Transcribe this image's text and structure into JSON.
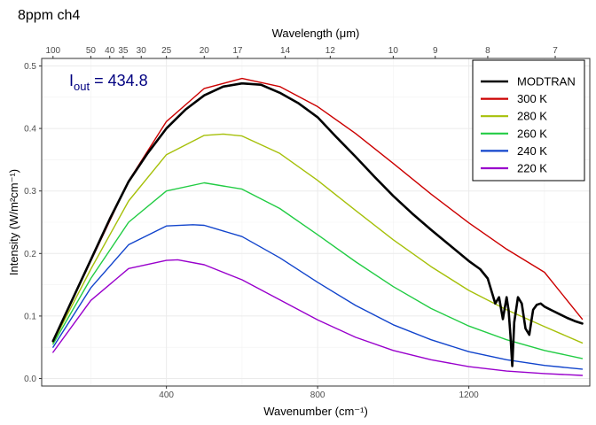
{
  "chart_data": {
    "type": "line",
    "title": "8ppm ch4",
    "xlabel": "Wavenumber (cm⁻¹)",
    "ylabel": "Intensity (W/m²cm⁻¹)",
    "top_axis_label": "Wavelength (μm)",
    "xlim": [
      70,
      1520
    ],
    "ylim": [
      -0.012,
      0.512
    ],
    "x_ticks": [
      400,
      800,
      1200
    ],
    "y_ticks": [
      0.0,
      0.1,
      0.2,
      0.3,
      0.4,
      0.5
    ],
    "y_tick_labels": [
      "0.0",
      "0.1",
      "0.2",
      "0.3",
      "0.4",
      "0.5"
    ],
    "top_ticks_um": [
      100,
      50,
      40,
      35,
      30,
      25,
      20,
      17,
      14,
      12,
      10,
      9,
      8,
      7
    ],
    "grid": true,
    "legend_position": "top-right",
    "annotation": {
      "base": "I",
      "subscript": "out",
      "text": " = 434.8",
      "color": "#000080"
    },
    "series": [
      {
        "name": "MODTRAN",
        "color": "#000000",
        "x": [
          100,
          150,
          200,
          250,
          300,
          350,
          400,
          450,
          500,
          550,
          600,
          650,
          700,
          750,
          800,
          850,
          900,
          950,
          1000,
          1050,
          1100,
          1150,
          1200,
          1230,
          1250,
          1270,
          1280,
          1290,
          1300,
          1305,
          1310,
          1315,
          1320,
          1330,
          1340,
          1350,
          1360,
          1365,
          1370,
          1380,
          1390,
          1400,
          1420,
          1440,
          1460,
          1480,
          1500
        ],
        "y": [
          0.06,
          0.125,
          0.19,
          0.255,
          0.315,
          0.36,
          0.4,
          0.43,
          0.453,
          0.467,
          0.472,
          0.47,
          0.457,
          0.44,
          0.418,
          0.386,
          0.355,
          0.323,
          0.292,
          0.264,
          0.238,
          0.213,
          0.188,
          0.175,
          0.16,
          0.12,
          0.13,
          0.095,
          0.13,
          0.11,
          0.07,
          0.02,
          0.09,
          0.13,
          0.12,
          0.08,
          0.07,
          0.09,
          0.11,
          0.118,
          0.12,
          0.115,
          0.109,
          0.103,
          0.097,
          0.092,
          0.088
        ]
      },
      {
        "name": "300 K",
        "color": "#CC0000",
        "x": [
          100,
          200,
          300,
          400,
          500,
          600,
          700,
          800,
          900,
          1000,
          1100,
          1200,
          1300,
          1400,
          1500
        ],
        "y": [
          0.06,
          0.188,
          0.316,
          0.411,
          0.464,
          0.48,
          0.467,
          0.435,
          0.392,
          0.344,
          0.295,
          0.249,
          0.207,
          0.17,
          0.095
        ]
      },
      {
        "name": "280 K",
        "color": "#A6C00A",
        "x": [
          100,
          200,
          300,
          400,
          500,
          550,
          600,
          700,
          800,
          900,
          1000,
          1100,
          1200,
          1300,
          1400,
          1500
        ],
        "y": [
          0.058,
          0.175,
          0.284,
          0.358,
          0.389,
          0.391,
          0.388,
          0.36,
          0.317,
          0.269,
          0.222,
          0.179,
          0.141,
          0.11,
          0.083,
          0.057
        ]
      },
      {
        "name": "260 K",
        "color": "#22CC44",
        "x": [
          100,
          200,
          300,
          400,
          500,
          600,
          700,
          800,
          900,
          1000,
          1100,
          1200,
          1300,
          1400,
          1500
        ],
        "y": [
          0.055,
          0.16,
          0.25,
          0.3,
          0.313,
          0.303,
          0.272,
          0.23,
          0.187,
          0.147,
          0.112,
          0.084,
          0.062,
          0.045,
          0.032
        ]
      },
      {
        "name": "240 K",
        "color": "#1144CC",
        "x": [
          100,
          200,
          300,
          400,
          470,
          500,
          600,
          700,
          800,
          900,
          1000,
          1100,
          1200,
          1300,
          1400,
          1500
        ],
        "y": [
          0.05,
          0.145,
          0.214,
          0.244,
          0.246,
          0.245,
          0.227,
          0.193,
          0.154,
          0.117,
          0.086,
          0.062,
          0.043,
          0.03,
          0.021,
          0.015
        ]
      },
      {
        "name": "220 K",
        "color": "#9900CC",
        "x": [
          100,
          200,
          300,
          400,
          430,
          500,
          600,
          700,
          800,
          900,
          1000,
          1100,
          1200,
          1300,
          1400,
          1500
        ],
        "y": [
          0.042,
          0.125,
          0.176,
          0.189,
          0.19,
          0.182,
          0.158,
          0.126,
          0.094,
          0.066,
          0.045,
          0.03,
          0.019,
          0.012,
          0.008,
          0.005
        ]
      }
    ]
  }
}
